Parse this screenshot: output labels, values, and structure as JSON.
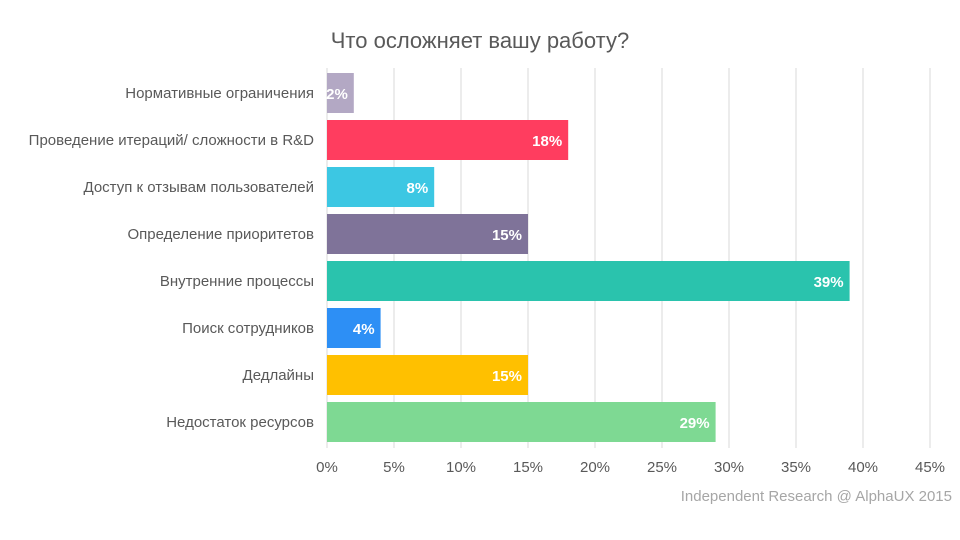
{
  "chart_data": {
    "type": "bar",
    "orientation": "horizontal",
    "title": "Что осложняет вашу работу?",
    "categories": [
      "Нормативные ограничения",
      "Проведение итераций/ сложности  в R&D",
      "Доступ к отзывам пользователей",
      "Определение  приоритетов",
      "Внутренние  процессы",
      "Поиск сотрудников",
      "Дедлайны",
      "Недостаток ресурсов"
    ],
    "values": [
      2,
      18,
      8,
      15,
      39,
      4,
      15,
      29
    ],
    "data_labels": [
      "2%",
      "18%",
      "8%",
      "15%",
      "39%",
      "4%",
      "15%",
      "29%"
    ],
    "colors": [
      "#b3a8c4",
      "#ff3d5f",
      "#3cc7e3",
      "#7f7399",
      "#2ac3ad",
      "#2d8ff5",
      "#ffc000",
      "#7ed993"
    ],
    "xlim": [
      0,
      45
    ],
    "xticks": [
      0,
      5,
      10,
      15,
      20,
      25,
      30,
      35,
      40,
      45
    ],
    "xtick_labels": [
      "0%",
      "5%",
      "10%",
      "15%",
      "20%",
      "25%",
      "30%",
      "35%",
      "40%",
      "45%"
    ],
    "grid": "vertical",
    "xlabel": "",
    "ylabel": ""
  },
  "footer": "Independent Research @ AlphaUX 2015"
}
